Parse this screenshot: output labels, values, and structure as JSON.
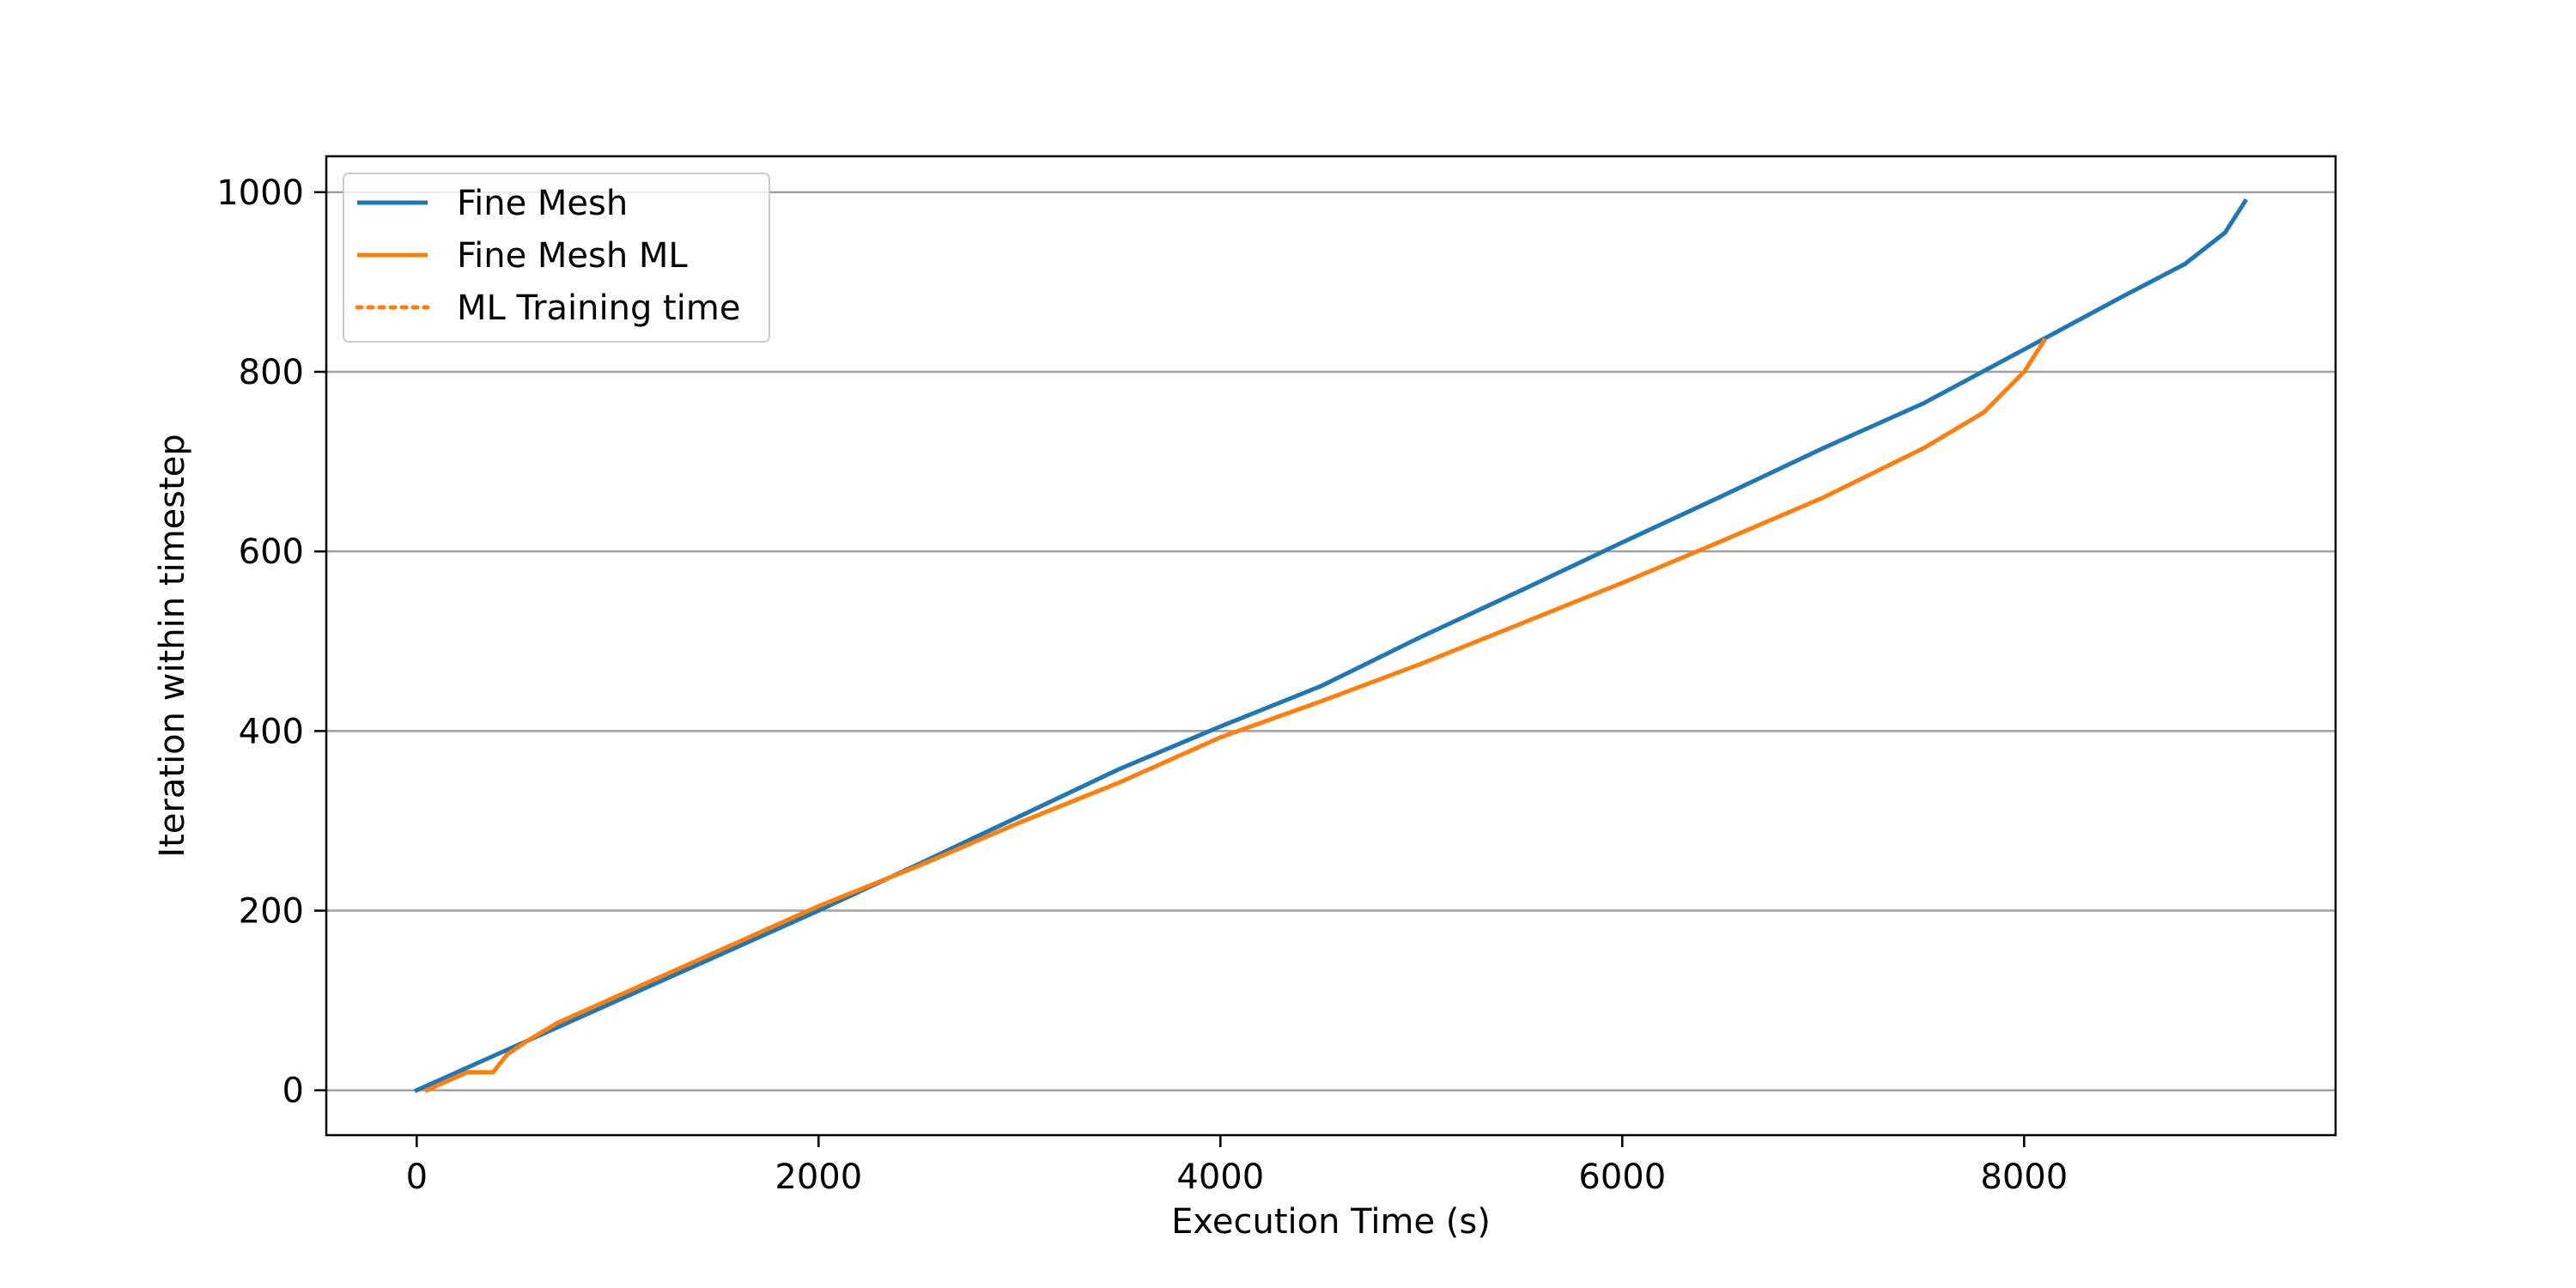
{
  "chart_data": {
    "type": "line",
    "xlabel": "Execution Time (s)",
    "ylabel": "Iteration within timestep",
    "xlim": [
      -450,
      9550
    ],
    "ylim": [
      -50,
      1040
    ],
    "xticks": [
      0,
      2000,
      4000,
      6000,
      8000
    ],
    "xtick_labels": [
      "0",
      "2000",
      "4000",
      "6000",
      "8000"
    ],
    "yticks": [
      0,
      200,
      400,
      600,
      800,
      1000
    ],
    "ytick_labels": [
      "0",
      "200",
      "400",
      "600",
      "800",
      "1000"
    ],
    "grid": "horizontal",
    "legend_position": "top-left",
    "series": [
      {
        "name": "Fine Mesh",
        "color": "#1f77b4",
        "style": "solid",
        "x": [
          0,
          500,
          1000,
          1500,
          2000,
          2500,
          3000,
          3500,
          4000,
          4500,
          5000,
          5500,
          6000,
          6500,
          7000,
          7500,
          8000,
          8500,
          8800,
          9000,
          9100
        ],
        "y": [
          0,
          50,
          100,
          150,
          200,
          252,
          305,
          358,
          405,
          450,
          505,
          557,
          610,
          662,
          715,
          765,
          825,
          885,
          920,
          955,
          990
        ]
      },
      {
        "name": "Fine Mesh ML",
        "color": "#ff7f0e",
        "style": "solid",
        "x": [
          50,
          250,
          380,
          450,
          550,
          700,
          1000,
          1500,
          2000,
          2500,
          3000,
          3500,
          4000,
          4500,
          5000,
          5500,
          6000,
          6500,
          7000,
          7500,
          7800,
          8000,
          8100
        ],
        "y": [
          0,
          20,
          20,
          40,
          55,
          75,
          105,
          155,
          205,
          250,
          298,
          343,
          393,
          433,
          475,
          520,
          565,
          612,
          660,
          715,
          755,
          800,
          835
        ]
      },
      {
        "name": "ML Training time",
        "color": "#ff7f0e",
        "style": "dotted",
        "x": [],
        "y": []
      }
    ]
  }
}
